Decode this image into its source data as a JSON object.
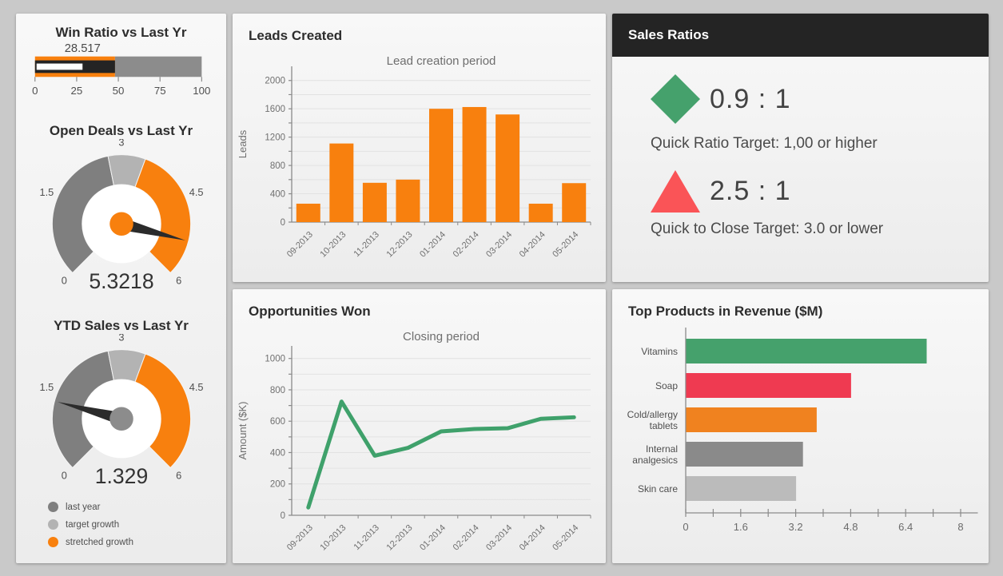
{
  "kpi_panel": {
    "bullet_title": "Win Ratio vs Last Yr",
    "gauge1_title": "Open Deals vs Last Yr",
    "gauge2_title": "YTD Sales vs Last Yr",
    "legend": [
      {
        "label": "last year",
        "color": "#7F7F7F"
      },
      {
        "label": "target growth",
        "color": "#B3B3B3"
      },
      {
        "label": "stretched growth",
        "color": "#F8800E"
      }
    ]
  },
  "leads_panel": {
    "title": "Leads Created"
  },
  "opps_panel": {
    "title": "Opportunities Won"
  },
  "ratios_panel": {
    "title": "Sales Ratios",
    "items": [
      {
        "icon": "diamond-icon",
        "icon_color": "#45A16C",
        "value": "0.9 : 1",
        "caption": "Quick Ratio Target: 1,00 or higher"
      },
      {
        "icon": "triangle-icon",
        "icon_color": "#FA5457",
        "value": "2.5 : 1",
        "caption": "Quick to Close Target: 3.0 or lower"
      }
    ]
  },
  "products_panel": {
    "title": "Top Products in Revenue ($M)"
  },
  "colors": {
    "orange": "#F8800E",
    "dark_gray": "#7F7F7F",
    "light_gray": "#B3B3B3",
    "mid_gray": "#8C8C8C",
    "green": "#3FA16B",
    "crimson": "#EF3A51",
    "red": "#FA5457",
    "axis": "#8A8A8A",
    "grid": "#E2E2E2",
    "tick_text": "#707070"
  },
  "chart_data": [
    {
      "id": "win_ratio_bullet",
      "type": "bullet",
      "title": "Win Ratio vs Last Yr",
      "value": 28.517,
      "value_label": "28.517",
      "comparative": 48,
      "ranges": [
        {
          "to": 48,
          "color": "#F8800E"
        },
        {
          "to": 100,
          "color": "#8C8C8C"
        }
      ],
      "measure_color": "#242424",
      "target_bar_color": "#FFFFFF",
      "xlim": [
        0,
        100
      ],
      "ticks": [
        0,
        25,
        50,
        75,
        100
      ]
    },
    {
      "id": "open_deals_gauge",
      "type": "gauge",
      "title": "Open Deals vs Last Yr",
      "value": 5.3218,
      "value_label": "5.3218",
      "min": 0,
      "max": 6,
      "tick_values": [
        0,
        1.5,
        3,
        4.5,
        6
      ],
      "tick_labels": [
        "0",
        "1.5",
        "3",
        "4.5",
        "6"
      ],
      "segments": [
        {
          "from": 0,
          "to": 2.75,
          "color": "#7F7F7F",
          "name": "last year"
        },
        {
          "from": 2.75,
          "to": 3.45,
          "color": "#B3B3B3",
          "name": "target growth"
        },
        {
          "from": 3.45,
          "to": 6,
          "color": "#F8800E",
          "name": "stretched growth"
        }
      ],
      "knob_color": "#F8800E",
      "needle_color": "#2B2B2B"
    },
    {
      "id": "ytd_sales_gauge",
      "type": "gauge",
      "title": "YTD Sales vs Last Yr",
      "value": 1.329,
      "value_label": "1.329",
      "min": 0,
      "max": 6,
      "tick_values": [
        0,
        1.5,
        3,
        4.5,
        6
      ],
      "tick_labels": [
        "0",
        "1.5",
        "3",
        "4.5",
        "6"
      ],
      "segments": [
        {
          "from": 0,
          "to": 2.75,
          "color": "#7F7F7F",
          "name": "last year"
        },
        {
          "from": 2.75,
          "to": 3.45,
          "color": "#B3B3B3",
          "name": "target growth"
        },
        {
          "from": 3.45,
          "to": 6,
          "color": "#F8800E",
          "name": "stretched growth"
        }
      ],
      "knob_color": "#8C8C8C",
      "needle_color": "#2B2B2B"
    },
    {
      "id": "leads_bar",
      "type": "bar",
      "title": "Lead creation period",
      "ylabel": "Leads",
      "categories": [
        "09-2013",
        "10-2013",
        "11-2013",
        "12-2013",
        "01-2014",
        "02-2014",
        "03-2014",
        "04-2014",
        "05-2014"
      ],
      "values": [
        260,
        1110,
        555,
        600,
        1600,
        1625,
        1520,
        260,
        550
      ],
      "ylim": [
        0,
        2200
      ],
      "grid_step": 200,
      "tick_step": 200,
      "label_step": 400,
      "color": "#F8800E"
    },
    {
      "id": "opps_line",
      "type": "line",
      "title": "Closing period",
      "ylabel": "Amount ($K)",
      "categories": [
        "09-2013",
        "10-2013",
        "11-2013",
        "12-2013",
        "01-2014",
        "02-2014",
        "03-2014",
        "04-2014",
        "05-2014"
      ],
      "values": [
        50,
        725,
        380,
        430,
        535,
        550,
        555,
        615,
        625
      ],
      "ylim": [
        0,
        1080
      ],
      "grid_step": 100,
      "tick_step": 100,
      "label_step": 200,
      "color": "#3FA16B"
    },
    {
      "id": "products_hbar",
      "type": "hbar",
      "title": "Top Products in Revenue ($M)",
      "categories": [
        "Vitamins",
        "Soap",
        "Cold/allergy tablets",
        "Internal analgesics",
        "Skin care"
      ],
      "values": [
        7.0,
        4.8,
        3.8,
        3.4,
        3.2
      ],
      "colors": [
        "#45A16C",
        "#EF3A51",
        "#F0821F",
        "#8A8A8A",
        "#BBBBBB"
      ],
      "xlim": [
        0,
        8.5
      ],
      "xtick_minor_step": 0.8,
      "xtick_major": [
        0,
        1.6,
        3.2,
        4.8,
        6.4,
        8
      ],
      "xtick_major_labels": [
        "0",
        "1.6",
        "3.2",
        "4.8",
        "6.4",
        "8"
      ]
    }
  ]
}
